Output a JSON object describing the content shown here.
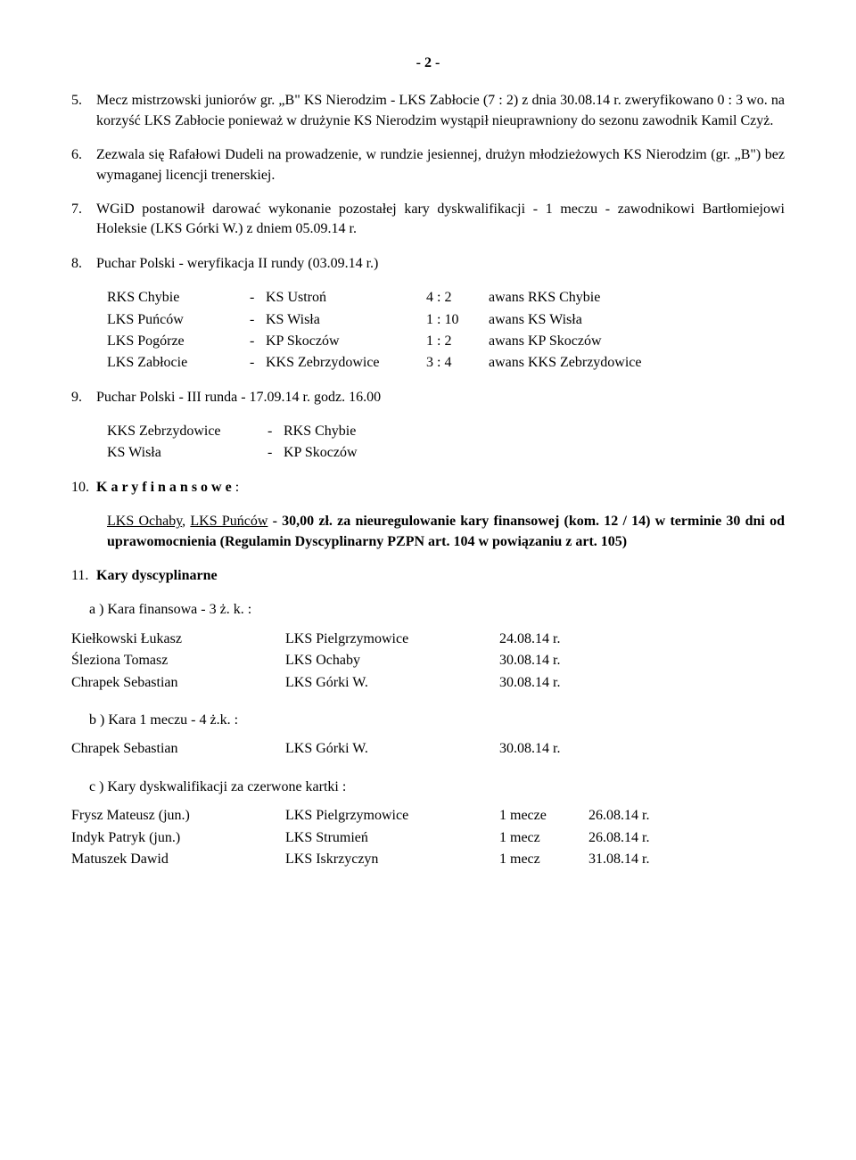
{
  "page_number": "- 2 -",
  "items": {
    "5": "Mecz mistrzowski juniorów gr. „B\" KS Nierodzim - LKS Zabłocie (7 : 2) z dnia 30.08.14 r. zweryfikowano 0 : 3 wo. na korzyść LKS Zabłocie ponieważ w drużynie KS Nierodzim wystąpił nieuprawniony do sezonu zawodnik Kamil Czyż.",
    "6": "Zezwala się Rafałowi Dudeli na prowadzenie, w rundzie jesiennej, drużyn młodzieżowych KS Nierodzim (gr. „B\") bez wymaganej licencji trenerskiej.",
    "7": "WGiD postanowił darować wykonanie pozostałej kary dyskwalifikacji - 1 meczu - zawodnikowi Bartłomiejowi Holeksie (LKS Górki W.) z dniem 05.09.14 r.",
    "8": "Puchar Polski - weryfikacja II rundy (03.09.14 r.)",
    "9": "Puchar Polski - III runda - 17.09.14 r. godz. 16.00",
    "10_label": "K a r y   f i n a n s o w e",
    "10_para1": " - 30,00 zł. za nieuregulowanie kary finansowej (kom. 12 / 14) w terminie 30 dni od uprawomocnienia (Regulamin Dyscyplinarny PZPN art. 104 w powiązaniu z art. 105)",
    "10_u1": "LKS Ochaby",
    "10_u2": "LKS Puńców",
    "11": "Kary dyscyplinarne"
  },
  "cup_round2": [
    {
      "t1": "RKS Chybie",
      "t2": "KS Ustroń",
      "score": "4 : 2",
      "result": "awans RKS Chybie"
    },
    {
      "t1": "LKS Puńców",
      "t2": "KS Wisła",
      "score": "1 : 10",
      "result": "awans KS Wisła"
    },
    {
      "t1": "LKS Pogórze",
      "t2": "KP Skoczów",
      "score": "1 : 2",
      "result": "awans KP Skoczów"
    },
    {
      "t1": "LKS Zabłocie",
      "t2": "KKS Zebrzydowice",
      "score": "3 : 4",
      "result": "awans KKS Zebrzydowice"
    }
  ],
  "cup_round3": [
    {
      "t1": "KKS Zebrzydowice",
      "t2": "RKS Chybie"
    },
    {
      "t1": "KS Wisła",
      "t2": "KP Skoczów"
    }
  ],
  "penalty_a": {
    "header": "a ) Kara finansowa - 3 ż. k. :",
    "rows": [
      {
        "name": "Kiełkowski Łukasz",
        "club": "LKS Pielgrzymowice",
        "date": "24.08.14 r."
      },
      {
        "name": "Śleziona Tomasz",
        "club": "LKS Ochaby",
        "date": "30.08.14 r."
      },
      {
        "name": "Chrapek Sebastian",
        "club": "LKS Górki W.",
        "date": "30.08.14 r."
      }
    ]
  },
  "penalty_b": {
    "header": "b ) Kara 1 meczu - 4 ż.k. :",
    "rows": [
      {
        "name": "Chrapek Sebastian",
        "club": "LKS Górki W.",
        "date": "30.08.14 r."
      }
    ]
  },
  "penalty_c": {
    "header": "c ) Kary dyskwalifikacji za czerwone kartki :",
    "rows": [
      {
        "name": "Frysz Mateusz (jun.)",
        "club": "LKS Pielgrzymowice",
        "count": "1 mecze",
        "date": "26.08.14 r."
      },
      {
        "name": "Indyk Patryk (jun.)",
        "club": "LKS Strumień",
        "count": "1 mecz",
        "date": "26.08.14 r."
      },
      {
        "name": "Matuszek Dawid",
        "club": "LKS Iskrzyczyn",
        "count": "1 mecz",
        "date": "31.08.14 r."
      }
    ]
  }
}
